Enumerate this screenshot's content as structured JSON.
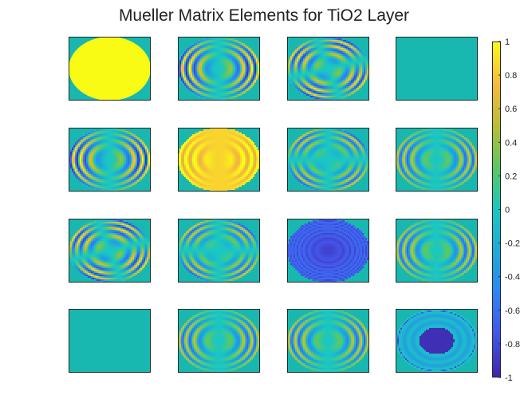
{
  "figure": {
    "title": "Mueller Matrix Elements for TiO2 Layer",
    "background": "#ffffff"
  },
  "chart_data": {
    "type": "heatmap",
    "title": "Mueller Matrix Elements for TiO2 Layer",
    "grid": "4x4",
    "colormap": "parula",
    "colormap_stops": [
      "#3e26a8",
      "#4354e8",
      "#2f84f5",
      "#20a9d8",
      "#1ac7c2",
      "#5cc862",
      "#bbbc3a",
      "#f8ba3d",
      "#f9fb15"
    ],
    "panel_background": "#18b8b0",
    "colorbar": {
      "position": "right",
      "range": [
        -1,
        1
      ],
      "ticks": [
        "-1",
        "-0.8",
        "-0.6",
        "-0.4",
        "-0.2",
        "0",
        "0.2",
        "0.4",
        "0.6",
        "0.8",
        "1"
      ]
    },
    "panels": [
      {
        "element": "m11",
        "pattern": "uniform",
        "value": 1,
        "amplitude": 0
      },
      {
        "element": "m12",
        "pattern": "rings_x",
        "value": 0,
        "amplitude": 0.9
      },
      {
        "element": "m13",
        "pattern": "rings_xy",
        "value": 0,
        "amplitude": 0.9
      },
      {
        "element": "m14",
        "pattern": "none",
        "value": 0,
        "amplitude": 0
      },
      {
        "element": "m21",
        "pattern": "rings_x",
        "value": 0,
        "amplitude": 0.9
      },
      {
        "element": "m22",
        "pattern": "rings_bright",
        "value": 0.85,
        "amplitude": 0.25
      },
      {
        "element": "m23",
        "pattern": "sector",
        "value": 0,
        "amplitude": 0.55
      },
      {
        "element": "m24",
        "pattern": "rings_y",
        "value": 0,
        "amplitude": 0.7
      },
      {
        "element": "m31",
        "pattern": "rings_xy",
        "value": 0,
        "amplitude": 0.9
      },
      {
        "element": "m32",
        "pattern": "sector",
        "value": 0,
        "amplitude": 0.55
      },
      {
        "element": "m33",
        "pattern": "rings_dark",
        "value": -0.85,
        "amplitude": 0.25
      },
      {
        "element": "m34",
        "pattern": "rings_y",
        "value": 0,
        "amplitude": 0.7
      },
      {
        "element": "m41",
        "pattern": "none",
        "value": 0,
        "amplitude": 0
      },
      {
        "element": "m42",
        "pattern": "rings_y",
        "value": 0,
        "amplitude": 0.7
      },
      {
        "element": "m43",
        "pattern": "rings_y",
        "value": 0,
        "amplitude": 0.7
      },
      {
        "element": "m44",
        "pattern": "target",
        "value": -0.95,
        "amplitude": 0.5
      }
    ]
  }
}
